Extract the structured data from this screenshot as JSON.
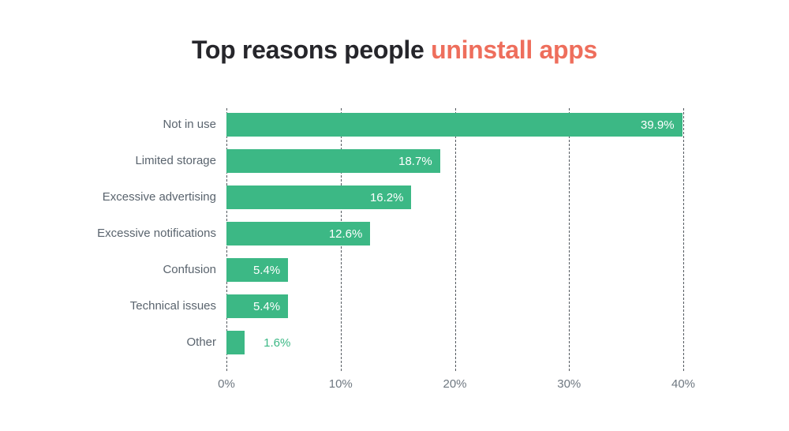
{
  "title": {
    "text": "Top reasons people uninstall apps",
    "prefix": "Top reasons people ",
    "highlight": "uninstall apps"
  },
  "colors": {
    "background": "#ffffff",
    "bar": "#3cb885",
    "title_text": "#26262b",
    "title_highlight": "#ee6e5c",
    "category_label": "#5a646e",
    "axis_tick_label": "#6e7780",
    "gridline": "#555b61",
    "value_label_inside": "#ffffff",
    "value_label_outside": "#3cb885"
  },
  "chart_data": {
    "type": "bar",
    "orientation": "horizontal",
    "title": "Top reasons people uninstall apps",
    "categories": [
      "Not in use",
      "Limited storage",
      "Excessive advertising",
      "Excessive notifications",
      "Confusion",
      "Technical issues",
      "Other"
    ],
    "values": [
      39.9,
      18.7,
      16.2,
      12.6,
      5.4,
      5.4,
      1.6
    ],
    "value_labels": [
      "39.9%",
      "18.7%",
      "16.2%",
      "12.6%",
      "5.4%",
      "5.4%",
      "1.6%"
    ],
    "value_label_positions": [
      "inside",
      "inside",
      "inside",
      "inside",
      "inside",
      "inside",
      "outside"
    ],
    "xlabel": "",
    "ylabel": "",
    "xlim": [
      0,
      40
    ],
    "x_ticks": [
      0,
      10,
      20,
      30,
      40
    ],
    "x_tick_labels": [
      "0%",
      "10%",
      "20%",
      "30%",
      "40%"
    ],
    "grid": "vertical dashed lines",
    "legend": "none"
  }
}
